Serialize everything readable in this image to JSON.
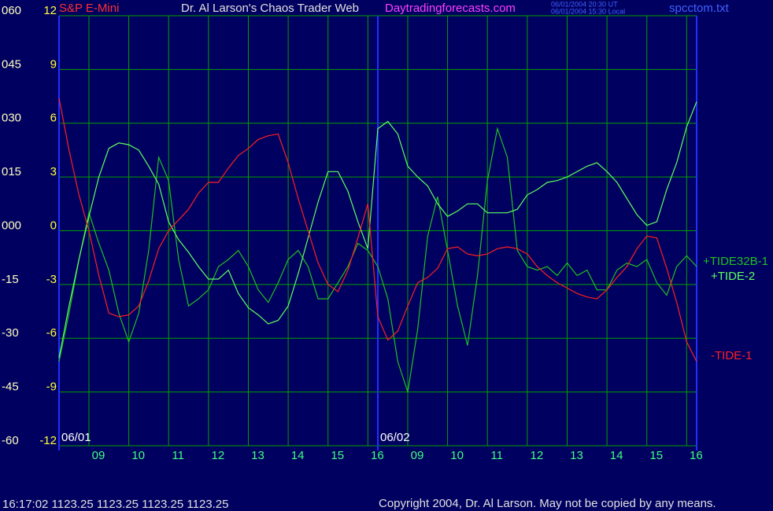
{
  "chart_data": {
    "type": "line",
    "title": "S&P E-Mini",
    "subtitle": "Dr. Al Larson's Chaos Trader Web",
    "site": "Daytradingforecasts.com",
    "timestamps": [
      "06/01/2004 20:30 UT",
      "06/01/2004 15:30 Local"
    ],
    "file": "spcctom.txt",
    "quote": "16:17:02  1123.25 1123.25 1123.25 1123.25",
    "copyright": "Copyright 2004, Dr. Al Larson. May not be copied by any means.",
    "day_labels": [
      "06/01",
      "06/02"
    ],
    "categories": [
      null,
      null,
      null,
      "09",
      null,
      null,
      null,
      "10",
      null,
      null,
      null,
      "11",
      null,
      null,
      null,
      "12",
      null,
      null,
      null,
      "13",
      null,
      null,
      null,
      "14",
      null,
      null,
      null,
      "15",
      null,
      null,
      null,
      "16",
      null,
      null,
      null,
      "09",
      null,
      null,
      null,
      "10",
      null,
      null,
      null,
      "11",
      null,
      null,
      null,
      "12",
      null,
      null,
      null,
      "13",
      null,
      null,
      null,
      "14",
      null,
      null,
      null,
      "15",
      null,
      null,
      null,
      "16",
      null
    ],
    "ylim": [
      -12,
      12
    ],
    "yticks": [
      12,
      9,
      6,
      3,
      0,
      -3,
      -6,
      -9,
      -12
    ],
    "y2lim": [
      -60,
      60
    ],
    "y2ticks": [
      {
        "value": 60,
        "label": "060"
      },
      {
        "value": 45,
        "label": "045"
      },
      {
        "value": 30,
        "label": "030"
      },
      {
        "value": 15,
        "label": "015"
      },
      {
        "value": 0,
        "label": "000"
      },
      -15,
      -30,
      -45,
      -60
    ],
    "grid": true,
    "series": [
      {
        "name": "+TIDE32B-1",
        "color": "#20c020",
        "values": [
          -7.3,
          -4.6,
          -1.6,
          1,
          -0.7,
          -2.2,
          -4.6,
          -6.2,
          -4.6,
          -1.1,
          4.1,
          2.8,
          -1.6,
          -4.2,
          -3.8,
          -3.3,
          -2,
          -1.6,
          -1.1,
          -2,
          -3.3,
          -4,
          -2.9,
          -1.6,
          -1.1,
          -2,
          -3.8,
          -3.8,
          -2.9,
          -2,
          -0.7,
          -1.1,
          -2,
          -3.8,
          -7.3,
          -9,
          -5.5,
          -0.3,
          1.9,
          -1.1,
          -4.2,
          -6.4,
          -2.5,
          2.8,
          5.7,
          4.1,
          -1.1,
          -2,
          -2.2,
          -2,
          -2.5,
          -1.8,
          -2.5,
          -2.2,
          -3.3,
          -3.3,
          -2.2,
          -1.8,
          -2,
          -1.6,
          -2.9,
          -3.6,
          -2,
          -1.4,
          -2
        ]
      },
      {
        "name": "+TIDE-2",
        "color": "#60ff60",
        "values": [
          -7.1,
          -4.2,
          -1.6,
          0.8,
          3,
          4.6,
          4.9,
          4.8,
          4.5,
          3.6,
          2.6,
          0.5,
          -0.5,
          -1.2,
          -2,
          -2.7,
          -2.7,
          -2.2,
          -3.5,
          -4.3,
          -4.7,
          -5.2,
          -5,
          -4.2,
          -2.4,
          -0.4,
          1.6,
          3.3,
          3.3,
          2.2,
          0.5,
          -1,
          5.7,
          6.1,
          5.4,
          3.6,
          3,
          2.5,
          1.5,
          0.8,
          1.1,
          1.5,
          1.5,
          1,
          1,
          1,
          1.2,
          2,
          2.3,
          2.7,
          2.8,
          3,
          3.3,
          3.6,
          3.8,
          3.3,
          2.7,
          1.8,
          0.9,
          0.3,
          0.5,
          2.3,
          3.8,
          5.8,
          7.2
        ]
      },
      {
        "name": "-TIDE-1",
        "color": "#ff2020",
        "values": [
          7.4,
          4.5,
          2,
          0,
          -2.5,
          -4.6,
          -4.8,
          -4.7,
          -4.2,
          -2.8,
          -1,
          0,
          0.6,
          1.2,
          2.1,
          2.7,
          2.7,
          3.5,
          4.2,
          4.6,
          5.1,
          5.3,
          5.4,
          3.8,
          1.8,
          0,
          -1.8,
          -3,
          -3.4,
          -2.2,
          -0.4,
          1.5,
          -4.8,
          -6.1,
          -5.6,
          -4.2,
          -2.9,
          -2.6,
          -2.1,
          -1,
          -0.9,
          -1.3,
          -1.4,
          -1.3,
          -1,
          -0.9,
          -1,
          -1.3,
          -2,
          -2.5,
          -2.9,
          -3.2,
          -3.5,
          -3.7,
          -3.8,
          -3.3,
          -2.6,
          -2,
          -1,
          -0.3,
          -0.4,
          -2.1,
          -4,
          -6.2,
          -7.3
        ]
      }
    ]
  }
}
